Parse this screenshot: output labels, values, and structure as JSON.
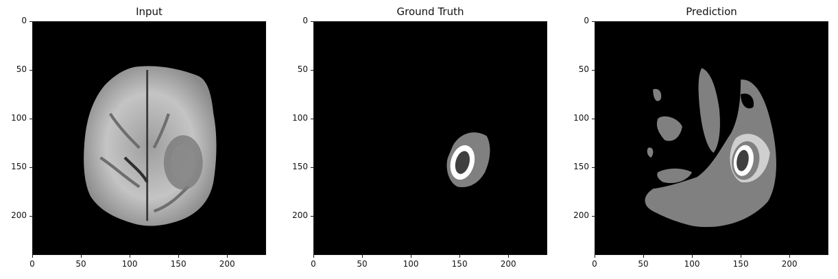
{
  "panels": [
    {
      "title": "Input"
    },
    {
      "title": "Ground Truth"
    },
    {
      "title": "Prediction"
    }
  ],
  "axes": {
    "x_ticks": [
      "0",
      "50",
      "100",
      "150",
      "200"
    ],
    "y_ticks": [
      "0",
      "50",
      "100",
      "150",
      "200"
    ],
    "x_range": [
      0,
      240
    ],
    "y_range": [
      0,
      240
    ]
  },
  "colors": {
    "background": "#000000",
    "brain_gray": "#bdbdbd",
    "label_gray": "#808080",
    "label_dark": "#404040",
    "label_white": "#ffffff",
    "label_light": "#c8c8c8"
  }
}
